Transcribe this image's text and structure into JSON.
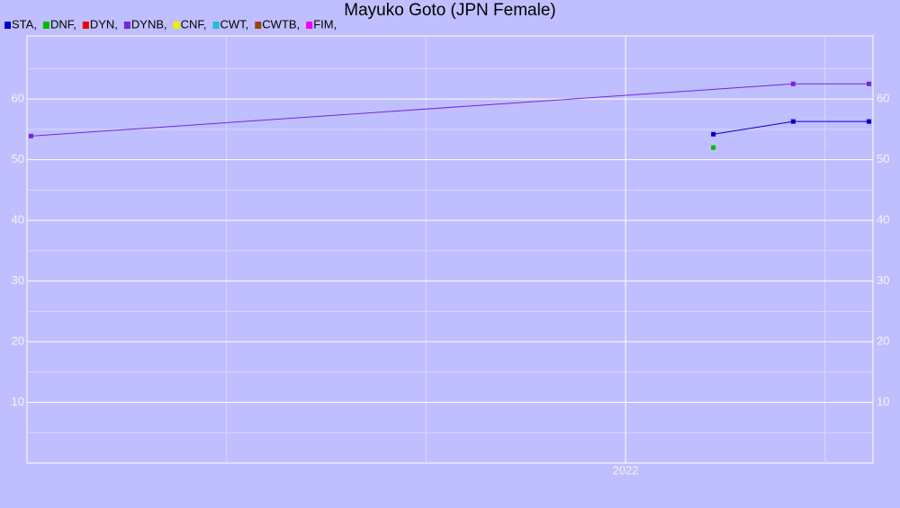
{
  "chart_data": {
    "type": "line",
    "title": "Mayuko Goto (JPN Female)",
    "series": [
      {
        "name": "STA,",
        "color": "#0000cc",
        "x": [
          2022.22,
          2022.42,
          2022.61
        ],
        "values": [
          54.2,
          56.3,
          56.3
        ]
      },
      {
        "name": "DNF,",
        "color": "#00bb00",
        "x": [
          2022.22
        ],
        "values": [
          52
        ]
      },
      {
        "name": "DYN,",
        "color": "#ee0000",
        "x": [],
        "values": []
      },
      {
        "name": "DYNB,",
        "color": "#7a22dd",
        "x": [
          2020.51,
          2022.42,
          2022.61
        ],
        "values": [
          53.9,
          62.5,
          62.5
        ]
      },
      {
        "name": "CNF,",
        "color": "#eeee00",
        "x": [],
        "values": []
      },
      {
        "name": "CWT,",
        "color": "#22bbdd",
        "x": [],
        "values": []
      },
      {
        "name": "CWTB,",
        "color": "#994411",
        "x": [],
        "values": []
      },
      {
        "name": "FIM,",
        "color": "#ee00ee",
        "x": [],
        "values": []
      }
    ],
    "xlim": [
      2020.5,
      2022.62
    ],
    "xticks": [
      2022
    ],
    "x_minor_ticks": [
      2021,
      2021.5,
      2022.5
    ],
    "ylim": [
      0,
      70.4
    ],
    "yticks": [
      10,
      20,
      30,
      40,
      50,
      60
    ],
    "y_minor_ticks": [
      5,
      15,
      25,
      35,
      45,
      55,
      65
    ],
    "grid": true
  }
}
